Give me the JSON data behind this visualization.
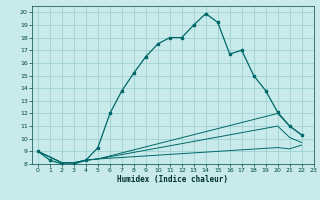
{
  "xlabel": "Humidex (Indice chaleur)",
  "bg_color": "#c8eaea",
  "line_color": "#006868",
  "grid_color": "#98cccc",
  "xlim": [
    -0.5,
    23
  ],
  "ylim": [
    8,
    20.5
  ],
  "xticks": [
    0,
    1,
    2,
    3,
    4,
    5,
    6,
    7,
    8,
    9,
    10,
    11,
    12,
    13,
    14,
    15,
    16,
    17,
    18,
    19,
    20,
    21,
    22,
    23
  ],
  "yticks": [
    8,
    9,
    10,
    11,
    12,
    13,
    14,
    15,
    16,
    17,
    18,
    19,
    20
  ],
  "line1_x": [
    0,
    1,
    2,
    3,
    4,
    5,
    6,
    7,
    8,
    9,
    10,
    11,
    12,
    13,
    14,
    15,
    16,
    17,
    18,
    19,
    20,
    21,
    22
  ],
  "line1_y": [
    9.0,
    8.3,
    8.0,
    8.0,
    8.3,
    9.3,
    12.0,
    13.8,
    15.2,
    16.5,
    17.5,
    18.0,
    18.0,
    19.0,
    19.9,
    19.2,
    16.7,
    17.0,
    15.0,
    13.8,
    12.1,
    11.0,
    10.3
  ],
  "line2_x": [
    0,
    2,
    3,
    4,
    5,
    20,
    21,
    22
  ],
  "line2_y": [
    9.0,
    8.1,
    8.1,
    8.3,
    8.4,
    12.0,
    11.0,
    10.3
  ],
  "line3_x": [
    0,
    2,
    3,
    4,
    5,
    20,
    21,
    22
  ],
  "line3_y": [
    9.0,
    8.1,
    8.1,
    8.3,
    8.4,
    11.0,
    10.1,
    9.7
  ],
  "line4_x": [
    0,
    2,
    3,
    4,
    5,
    20,
    21,
    22
  ],
  "line4_y": [
    9.0,
    8.1,
    8.1,
    8.3,
    8.4,
    9.3,
    9.2,
    9.5
  ]
}
